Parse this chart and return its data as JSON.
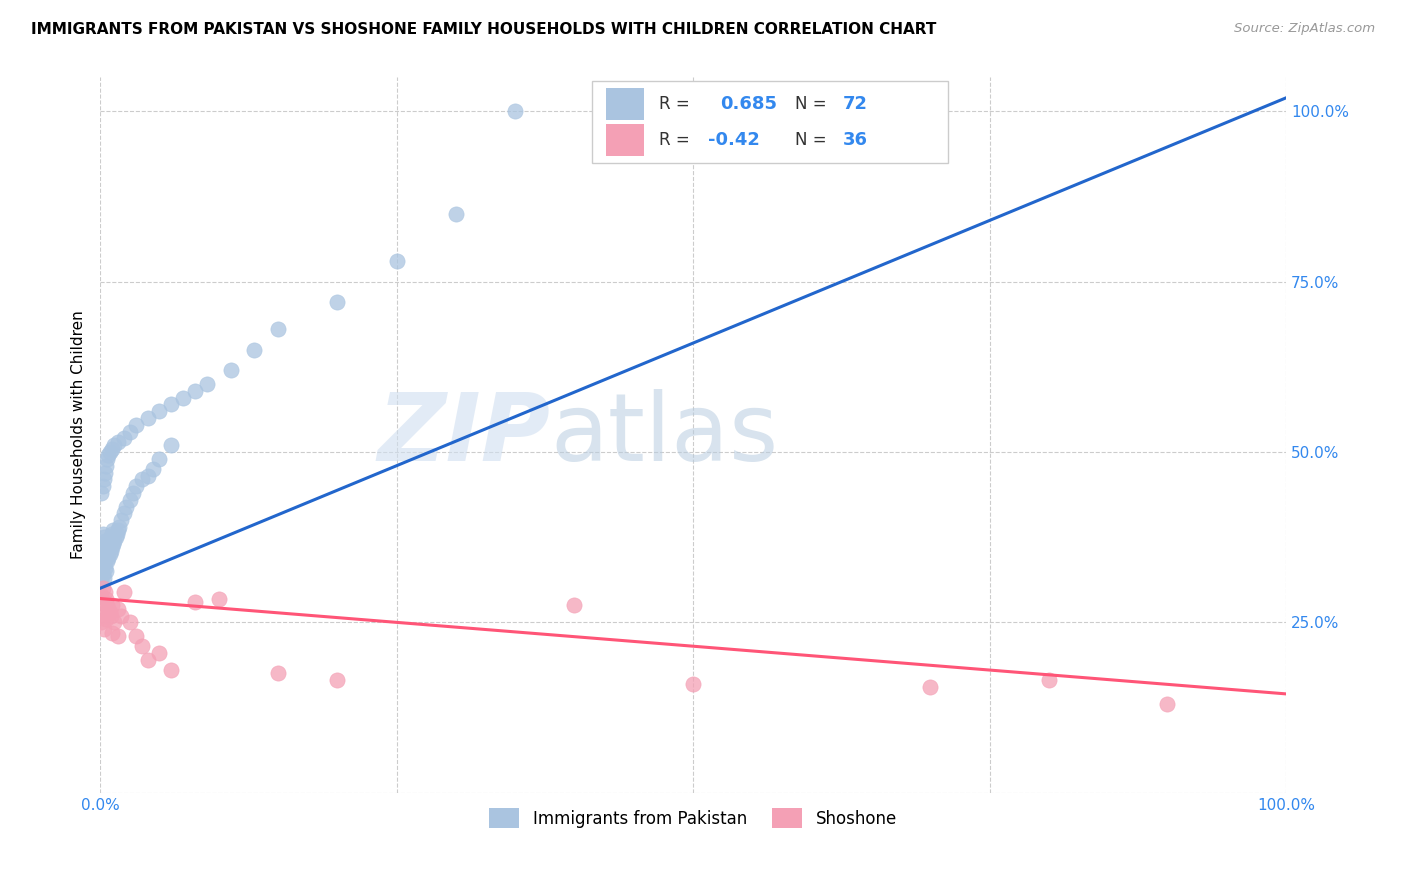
{
  "title": "IMMIGRANTS FROM PAKISTAN VS SHOSHONE FAMILY HOUSEHOLDS WITH CHILDREN CORRELATION CHART",
  "source": "Source: ZipAtlas.com",
  "ylabel": "Family Households with Children",
  "ytick_labels": [
    "",
    "25.0%",
    "50.0%",
    "75.0%",
    "100.0%"
  ],
  "ytick_positions": [
    0.0,
    0.25,
    0.5,
    0.75,
    1.0
  ],
  "xlim": [
    0.0,
    1.0
  ],
  "ylim": [
    0.0,
    1.05
  ],
  "blue_R": 0.685,
  "blue_N": 72,
  "pink_R": -0.42,
  "pink_N": 36,
  "blue_color": "#aac4e0",
  "pink_color": "#f4a0b5",
  "blue_line_color": "#2266cc",
  "pink_line_color": "#ff5577",
  "legend_label_blue": "Immigrants from Pakistan",
  "legend_label_pink": "Shoshone",
  "watermark_zip": "ZIP",
  "watermark_atlas": "atlas",
  "blue_scatter_x": [
    0.001,
    0.001,
    0.001,
    0.002,
    0.002,
    0.002,
    0.002,
    0.003,
    0.003,
    0.003,
    0.003,
    0.004,
    0.004,
    0.004,
    0.005,
    0.005,
    0.005,
    0.006,
    0.006,
    0.007,
    0.007,
    0.008,
    0.008,
    0.009,
    0.009,
    0.01,
    0.01,
    0.011,
    0.011,
    0.012,
    0.013,
    0.014,
    0.015,
    0.016,
    0.018,
    0.02,
    0.022,
    0.025,
    0.028,
    0.03,
    0.035,
    0.04,
    0.045,
    0.05,
    0.06,
    0.001,
    0.002,
    0.003,
    0.004,
    0.005,
    0.006,
    0.007,
    0.008,
    0.01,
    0.012,
    0.015,
    0.02,
    0.025,
    0.03,
    0.04,
    0.05,
    0.06,
    0.07,
    0.08,
    0.09,
    0.11,
    0.13,
    0.15,
    0.2,
    0.25,
    0.3,
    0.35
  ],
  "blue_scatter_y": [
    0.31,
    0.33,
    0.35,
    0.32,
    0.34,
    0.36,
    0.38,
    0.315,
    0.335,
    0.355,
    0.375,
    0.33,
    0.35,
    0.37,
    0.325,
    0.345,
    0.365,
    0.34,
    0.36,
    0.345,
    0.365,
    0.35,
    0.37,
    0.355,
    0.375,
    0.36,
    0.38,
    0.365,
    0.385,
    0.37,
    0.375,
    0.38,
    0.385,
    0.39,
    0.4,
    0.41,
    0.42,
    0.43,
    0.44,
    0.45,
    0.46,
    0.465,
    0.475,
    0.49,
    0.51,
    0.44,
    0.45,
    0.46,
    0.47,
    0.48,
    0.49,
    0.495,
    0.5,
    0.505,
    0.51,
    0.515,
    0.52,
    0.53,
    0.54,
    0.55,
    0.56,
    0.57,
    0.58,
    0.59,
    0.6,
    0.62,
    0.65,
    0.68,
    0.72,
    0.78,
    0.85,
    1.0
  ],
  "pink_scatter_x": [
    0.001,
    0.001,
    0.002,
    0.002,
    0.003,
    0.003,
    0.004,
    0.004,
    0.005,
    0.005,
    0.006,
    0.007,
    0.008,
    0.009,
    0.01,
    0.01,
    0.012,
    0.015,
    0.015,
    0.018,
    0.02,
    0.025,
    0.03,
    0.035,
    0.04,
    0.05,
    0.06,
    0.08,
    0.1,
    0.15,
    0.2,
    0.4,
    0.5,
    0.7,
    0.8,
    0.9
  ],
  "pink_scatter_y": [
    0.29,
    0.25,
    0.3,
    0.26,
    0.28,
    0.24,
    0.295,
    0.265,
    0.285,
    0.255,
    0.275,
    0.27,
    0.265,
    0.26,
    0.275,
    0.235,
    0.25,
    0.27,
    0.23,
    0.26,
    0.295,
    0.25,
    0.23,
    0.215,
    0.195,
    0.205,
    0.18,
    0.28,
    0.285,
    0.175,
    0.165,
    0.275,
    0.16,
    0.155,
    0.165,
    0.13
  ],
  "blue_line_x0": 0.0,
  "blue_line_y0": 0.3,
  "blue_line_x1": 1.0,
  "blue_line_y1": 1.02,
  "pink_line_x0": 0.0,
  "pink_line_y0": 0.285,
  "pink_line_x1": 1.0,
  "pink_line_y1": 0.145
}
